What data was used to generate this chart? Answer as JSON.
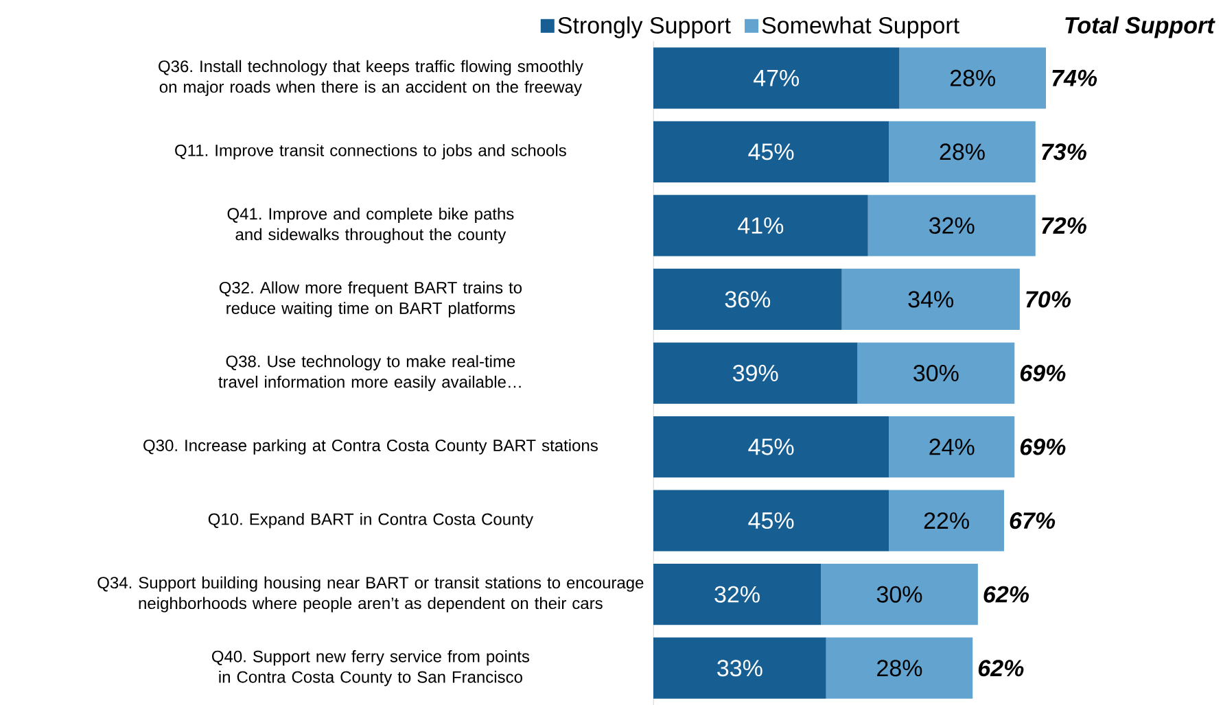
{
  "chart_data": {
    "type": "bar",
    "orientation": "horizontal",
    "stacked": true,
    "legend": "top",
    "annotations": [
      "**Total Support**"
    ],
    "categories": [
      "Q36. Install technology that keeps traffic flowing smoothly on major roads when there is an accident on the freeway",
      "Q11. Improve transit connections to jobs and schools",
      "Q41. Improve and complete bike paths and sidewalks throughout the county",
      "Q32. Allow more frequent BART trains to reduce waiting time on BART platforms",
      "Q38. Use technology to make real-time travel information more easily available…",
      "Q30. Increase parking at Contra Costa County BART stations",
      "Q10. Expand BART in Contra Costa County",
      "Q34. Support building housing near BART or transit stations to encourage neighborhoods where people aren’t as dependent on their cars",
      "Q40. Support new ferry service from points in Contra Costa County to San Francisco"
    ],
    "series": [
      {
        "name": "Strongly Support",
        "color": "#175f92",
        "values": [
          47,
          45,
          41,
          36,
          39,
          45,
          45,
          32,
          33
        ],
        "value_labels": [
          "47%",
          "45%",
          "41%",
          "36%",
          "39%",
          "45%",
          "45%",
          "32%",
          "33%"
        ]
      },
      {
        "name": "Somewhat Support",
        "color": "#63a3cf",
        "values": [
          28,
          28,
          32,
          34,
          30,
          24,
          22,
          30,
          28
        ],
        "value_labels": [
          "28%",
          "28%",
          "32%",
          "34%",
          "30%",
          "24%",
          "22%",
          "30%",
          "28%"
        ]
      }
    ],
    "totals": [
      "74%",
      "73%",
      "72%",
      "70%",
      "69%",
      "69%",
      "67%",
      "62%",
      "62%"
    ]
  }
}
